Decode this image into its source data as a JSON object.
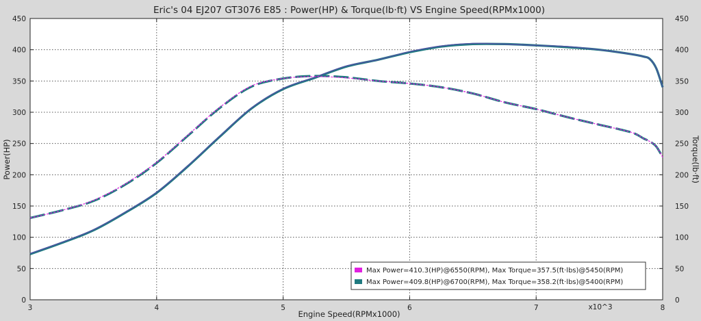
{
  "chart_data": {
    "type": "line",
    "title": "Eric's 04 EJ207 GT3076 E85 : Power(HP) & Torque(lb·ft) VS Engine Speed(RPMx1000)",
    "xlabel": "Engine Speed(RPMx1000)",
    "ylabel_left": "Power(HP)",
    "ylabel_right": "Torque(lb·ft)",
    "x_multiplier_label": "x10^3",
    "xlim": [
      3,
      8
    ],
    "ylim": [
      0,
      450
    ],
    "x_ticks": [
      "3",
      "4",
      "5",
      "6",
      "7",
      "8"
    ],
    "y_ticks": [
      "0",
      "50",
      "100",
      "150",
      "200",
      "250",
      "300",
      "350",
      "400",
      "450"
    ],
    "grid": true,
    "legend_position": "bottom-right",
    "colors": {
      "series1": "#e020e0",
      "series2": "#1f7a80",
      "overlay": "#4a55a0"
    },
    "x": [
      3.0,
      3.25,
      3.5,
      3.75,
      4.0,
      4.25,
      4.5,
      4.75,
      5.0,
      5.25,
      5.5,
      5.75,
      6.0,
      6.25,
      6.5,
      6.75,
      7.0,
      7.25,
      7.5,
      7.75,
      7.85,
      7.9,
      7.95,
      8.0
    ],
    "series": [
      {
        "name": "Max Power=410.3(HP)@6550(RPM), Max Torque=357.5(ft·lbs)@5450(RPM)",
        "power": [
          74,
          92,
          112,
          140,
          172,
          215,
          262,
          307,
          338,
          356,
          374,
          384,
          397,
          406,
          410,
          409,
          407,
          405,
          400,
          393,
          389,
          385,
          370,
          340
        ],
        "torque": [
          131,
          143,
          159,
          185,
          220,
          264,
          308,
          342,
          354,
          357,
          355,
          350,
          346,
          340,
          330,
          316,
          305,
          292,
          280,
          268,
          258,
          253,
          245,
          228
        ]
      },
      {
        "name": "Max Power=409.8(HP)@6700(RPM), Max Torque=358.2(ft·lbs)@5400(RPM)",
        "power": [
          73,
          91,
          111,
          139,
          171,
          214,
          261,
          306,
          337,
          355,
          373,
          384,
          396,
          405,
          409,
          409,
          407,
          404,
          400,
          393,
          389,
          385,
          370,
          340
        ],
        "torque": [
          131,
          143,
          158,
          184,
          219,
          263,
          307,
          341,
          354,
          358,
          356,
          350,
          346,
          340,
          330,
          316,
          305,
          292,
          280,
          268,
          258,
          253,
          245,
          228
        ]
      }
    ]
  }
}
